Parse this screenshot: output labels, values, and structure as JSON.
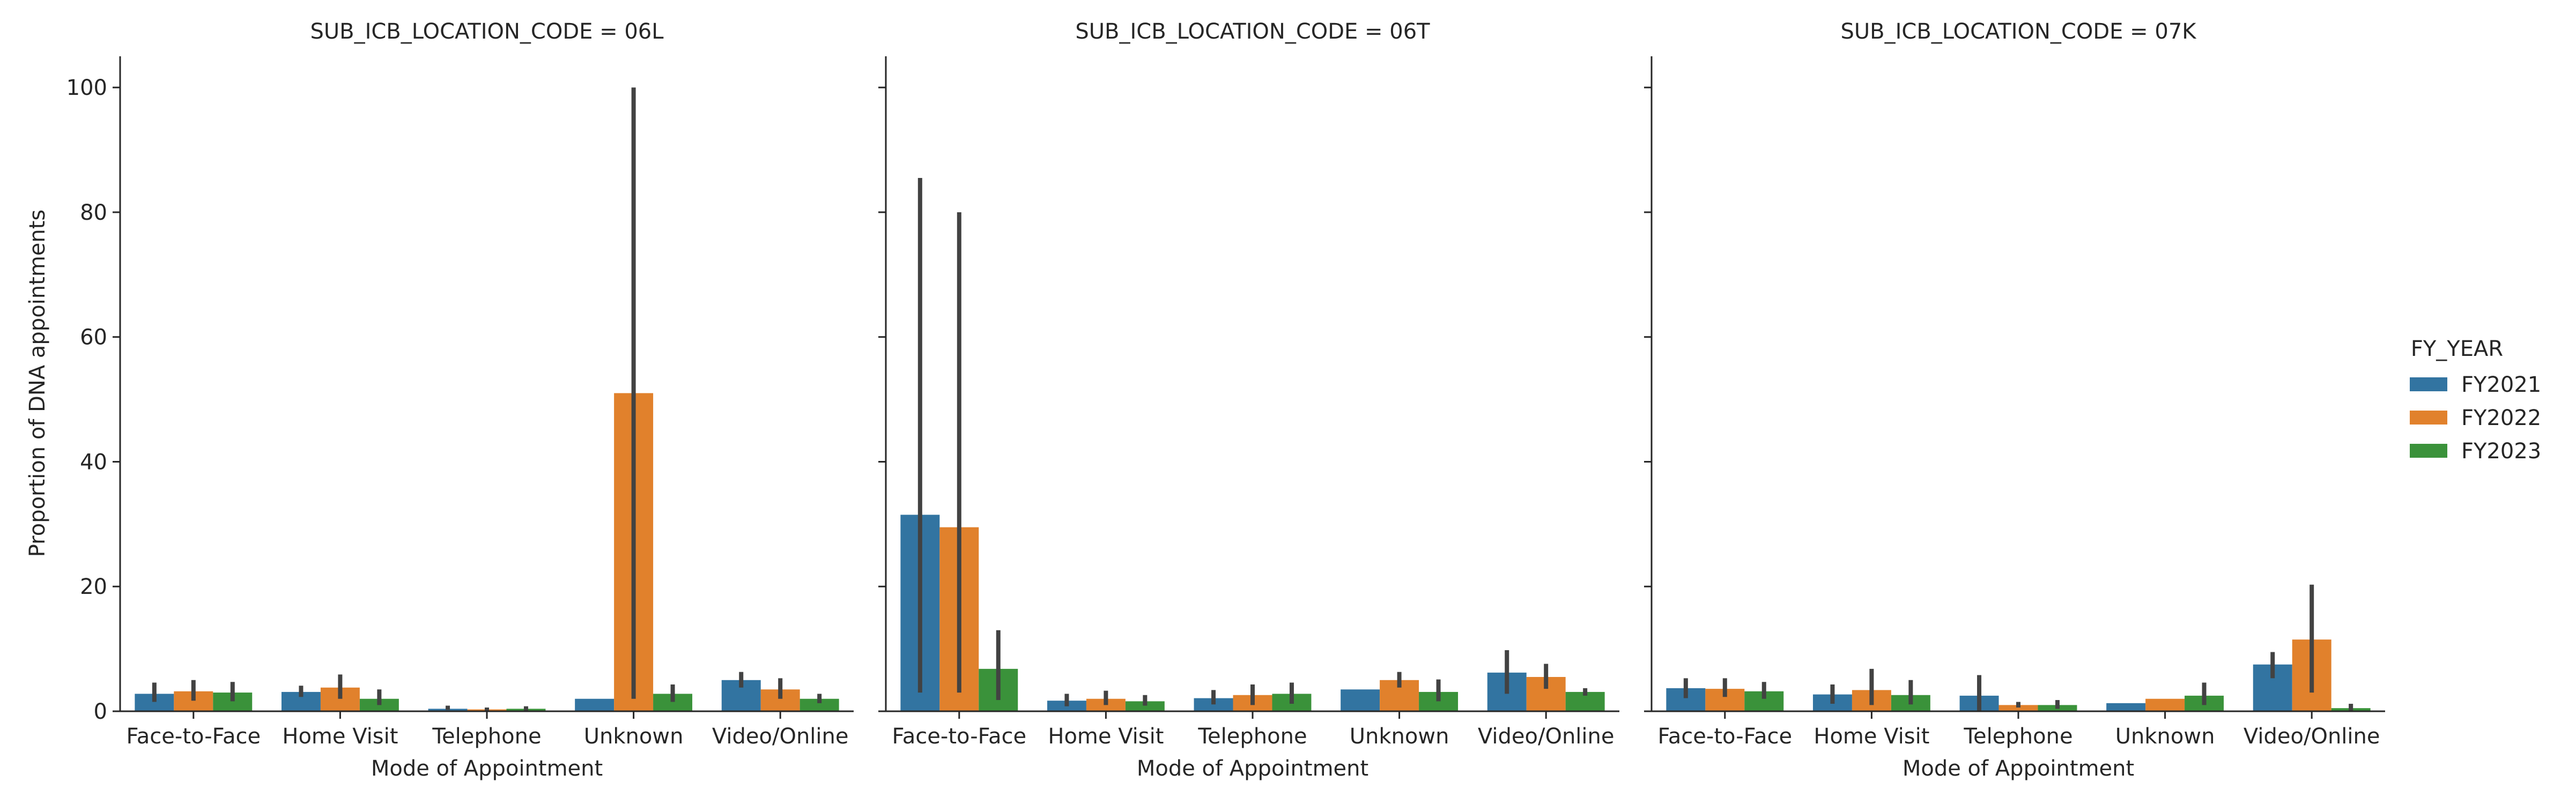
{
  "colors": {
    "FY2021": "#3274a1",
    "FY2022": "#e1812c",
    "FY2023": "#3a923a",
    "error_bar": "#424242",
    "axis": "#262626"
  },
  "chart_data": {
    "type": "bar",
    "layout": "facet-columns",
    "ylabel": "Proportion of DNA appointments",
    "xlabel": "Mode of Appointment",
    "ylim": [
      0,
      105
    ],
    "yticks": [
      0,
      20,
      40,
      60,
      80,
      100
    ],
    "categories": [
      "Face-to-Face",
      "Home Visit",
      "Telephone",
      "Unknown",
      "Video/Online"
    ],
    "legend": {
      "title": "FY_YEAR",
      "placement": "right",
      "entries": [
        "FY2021",
        "FY2022",
        "FY2023"
      ]
    },
    "facets": [
      {
        "title": "SUB_ICB_LOCATION_CODE = 06L",
        "series": [
          {
            "name": "FY2021",
            "values": [
              2.8,
              3.1,
              0.4,
              2.0,
              5.0
            ],
            "ci_low": [
              1.5,
              2.3,
              0.2,
              2.0,
              3.8
            ],
            "ci_high": [
              4.6,
              4.1,
              0.9,
              2.0,
              6.3
            ]
          },
          {
            "name": "FY2022",
            "values": [
              3.2,
              3.8,
              0.3,
              51.0,
              3.5
            ],
            "ci_low": [
              1.7,
              2.0,
              0.1,
              2.0,
              2.0
            ],
            "ci_high": [
              5.0,
              5.9,
              0.6,
              100.0,
              5.3
            ]
          },
          {
            "name": "FY2023",
            "values": [
              3.0,
              2.0,
              0.4,
              2.8,
              2.0
            ],
            "ci_low": [
              1.6,
              1.0,
              0.1,
              1.5,
              1.3
            ],
            "ci_high": [
              4.7,
              3.5,
              0.8,
              4.3,
              2.8
            ]
          }
        ]
      },
      {
        "title": "SUB_ICB_LOCATION_CODE = 06T",
        "series": [
          {
            "name": "FY2021",
            "values": [
              31.5,
              1.7,
              2.1,
              3.5,
              6.2
            ],
            "ci_low": [
              3.0,
              0.8,
              1.1,
              3.5,
              2.8
            ],
            "ci_high": [
              85.5,
              2.8,
              3.4,
              3.5,
              9.8
            ]
          },
          {
            "name": "FY2022",
            "values": [
              29.5,
              2.0,
              2.6,
              5.0,
              5.5
            ],
            "ci_low": [
              3.0,
              1.0,
              1.0,
              3.8,
              3.6
            ],
            "ci_high": [
              80.0,
              3.3,
              4.3,
              6.3,
              7.6
            ]
          },
          {
            "name": "FY2023",
            "values": [
              6.8,
              1.6,
              2.8,
              3.1,
              3.1
            ],
            "ci_low": [
              1.8,
              0.9,
              1.2,
              1.6,
              2.5
            ],
            "ci_high": [
              13.0,
              2.6,
              4.6,
              5.1,
              3.7
            ]
          }
        ]
      },
      {
        "title": "SUB_ICB_LOCATION_CODE = 07K",
        "series": [
          {
            "name": "FY2021",
            "values": [
              3.7,
              2.7,
              2.5,
              1.3,
              7.5
            ],
            "ci_low": [
              2.1,
              1.2,
              0.0,
              1.3,
              5.3
            ],
            "ci_high": [
              5.3,
              4.3,
              5.8,
              1.3,
              9.5
            ]
          },
          {
            "name": "FY2022",
            "values": [
              3.6,
              3.4,
              1.0,
              2.0,
              11.5
            ],
            "ci_low": [
              2.3,
              1.0,
              0.6,
              2.0,
              3.0
            ],
            "ci_high": [
              5.3,
              6.8,
              1.5,
              2.0,
              20.3
            ]
          },
          {
            "name": "FY2023",
            "values": [
              3.2,
              2.6,
              1.0,
              2.5,
              0.5
            ],
            "ci_low": [
              2.0,
              1.1,
              0.4,
              1.0,
              0.0
            ],
            "ci_high": [
              4.7,
              5.0,
              1.8,
              4.6,
              1.2
            ]
          }
        ]
      }
    ]
  }
}
